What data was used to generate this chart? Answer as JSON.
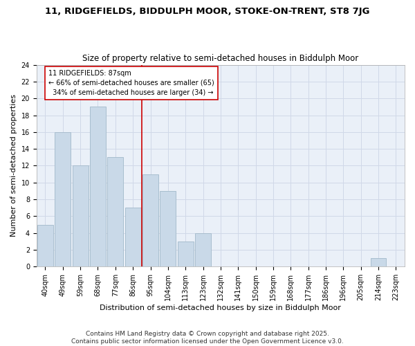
{
  "title1": "11, RIDGEFIELDS, BIDDULPH MOOR, STOKE-ON-TRENT, ST8 7JG",
  "title2": "Size of property relative to semi-detached houses in Biddulph Moor",
  "xlabel": "Distribution of semi-detached houses by size in Biddulph Moor",
  "ylabel": "Number of semi-detached properties",
  "footer1": "Contains HM Land Registry data © Crown copyright and database right 2025.",
  "footer2": "Contains public sector information licensed under the Open Government Licence v3.0.",
  "bins": [
    "40sqm",
    "49sqm",
    "59sqm",
    "68sqm",
    "77sqm",
    "86sqm",
    "95sqm",
    "104sqm",
    "113sqm",
    "123sqm",
    "132sqm",
    "141sqm",
    "150sqm",
    "159sqm",
    "168sqm",
    "177sqm",
    "186sqm",
    "196sqm",
    "205sqm",
    "214sqm",
    "223sqm"
  ],
  "values": [
    5,
    16,
    12,
    19,
    13,
    7,
    11,
    9,
    3,
    4,
    0,
    0,
    0,
    0,
    0,
    0,
    0,
    0,
    0,
    1,
    0
  ],
  "bar_color": "#c9d9e8",
  "bar_edge_color": "#a8bece",
  "grid_color": "#d0d8e8",
  "bg_color": "#eaf0f8",
  "annotation_text": "11 RIDGEFIELDS: 87sqm\n← 66% of semi-detached houses are smaller (65)\n  34% of semi-detached houses are larger (34) →",
  "vline_x": 5.5,
  "vline_color": "#cc0000",
  "annotation_box_color": "#ffffff",
  "annotation_box_edge": "#cc0000",
  "ylim": [
    0,
    24
  ],
  "yticks": [
    0,
    2,
    4,
    6,
    8,
    10,
    12,
    14,
    16,
    18,
    20,
    22,
    24
  ],
  "title1_fontsize": 9.5,
  "title2_fontsize": 8.5,
  "xlabel_fontsize": 8,
  "ylabel_fontsize": 8,
  "tick_fontsize": 7,
  "annotation_fontsize": 7,
  "footer_fontsize": 6.5
}
